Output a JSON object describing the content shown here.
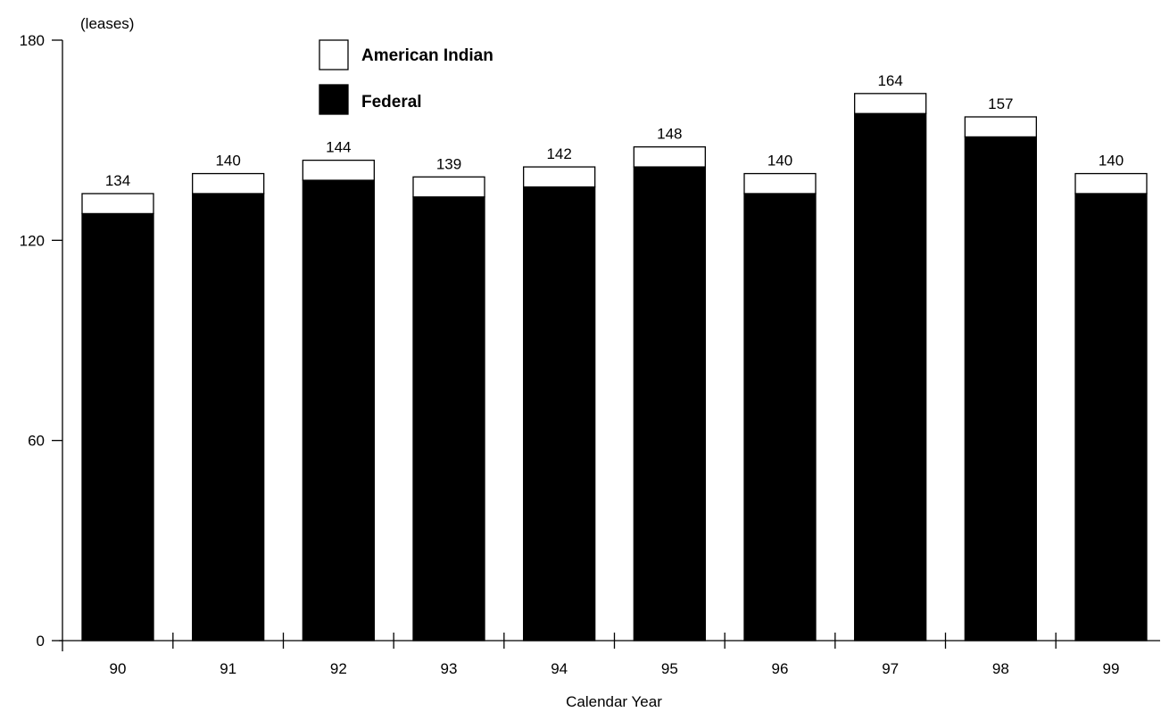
{
  "chart_data": {
    "type": "bar",
    "stacked": true,
    "ylabel": "(leases)",
    "xlabel": "Calendar Year",
    "ylim": [
      0,
      180
    ],
    "yticks": [
      0,
      60,
      120,
      180
    ],
    "categories": [
      "90",
      "91",
      "92",
      "93",
      "94",
      "95",
      "96",
      "97",
      "98",
      "99"
    ],
    "series": [
      {
        "name": "Federal",
        "color": "#000000",
        "values": [
          128,
          134,
          138,
          133,
          136,
          142,
          134,
          158,
          151,
          134
        ]
      },
      {
        "name": "American Indian",
        "color": "#ffffff",
        "values": [
          6,
          6,
          6,
          6,
          6,
          6,
          6,
          6,
          6,
          6
        ]
      }
    ],
    "totals": [
      134,
      140,
      144,
      139,
      142,
      148,
      140,
      164,
      157,
      140
    ],
    "legend_position": "top-left",
    "grid": false
  }
}
